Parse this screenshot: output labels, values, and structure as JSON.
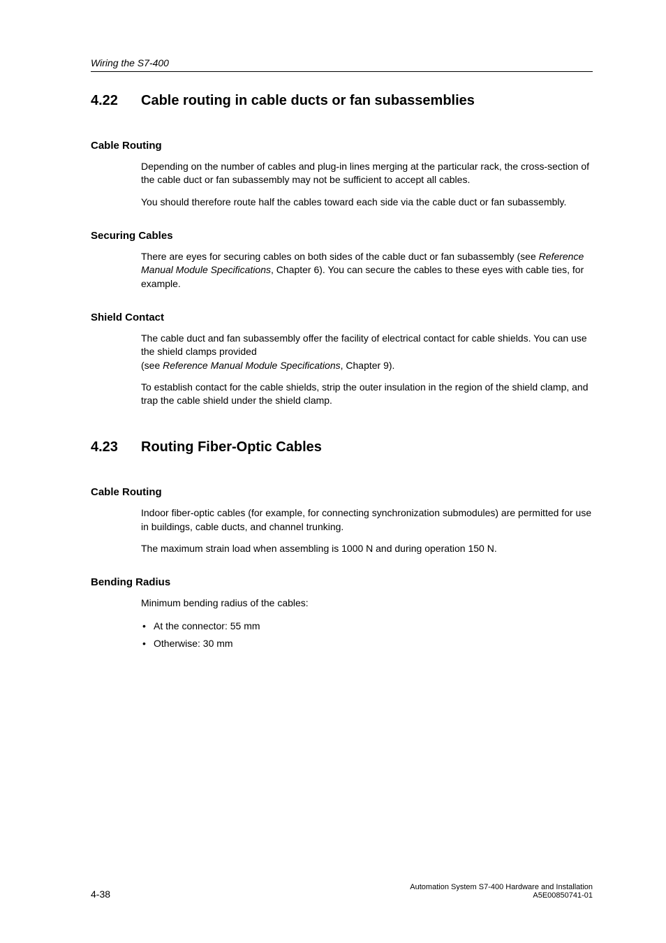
{
  "runningHead": "Wiring the S7-400",
  "section1": {
    "number": "4.22",
    "title": "Cable routing in cable ducts or fan subassemblies",
    "sub1": {
      "heading": "Cable Routing",
      "p1": "Depending on the number of cables and plug-in lines merging at the particular rack, the cross-section of the cable duct or fan subassembly may not be sufficient to accept all cables.",
      "p2": "You should therefore route half the cables toward each side via the cable duct or fan subassembly."
    },
    "sub2": {
      "heading": "Securing Cables",
      "p1a": "There are eyes for securing cables on both sides of the cable duct or fan subassembly (see ",
      "p1ital": "Reference Manual Module Specifications",
      "p1b": ", Chapter 6). You can secure the cables to these eyes with cable ties, for example."
    },
    "sub3": {
      "heading": "Shield Contact",
      "p1a": "The cable duct and fan subassembly offer the facility of electrical contact for cable shields. You can use the shield clamps provided",
      "p1br_a": "(see ",
      "p1br_ital": "Reference Manual Module Specifications",
      "p1br_b": ", Chapter 9).",
      "p2": "To establish contact for the cable shields, strip the outer insulation in the region of the shield clamp, and trap the cable shield under the shield clamp."
    }
  },
  "section2": {
    "number": "4.23",
    "title": "Routing Fiber-Optic Cables",
    "sub1": {
      "heading": "Cable Routing",
      "p1": "Indoor fiber-optic cables (for example, for connecting synchronization submodules) are permitted for use in buildings, cable ducts, and channel trunking.",
      "p2": "The maximum strain load when assembling is 1000 N and during operation 150 N."
    },
    "sub2": {
      "heading": "Bending Radius",
      "p1": "Minimum bending radius of the cables:",
      "li1": "At the connector: 55 mm",
      "li2": "Otherwise: 30 mm"
    }
  },
  "footer": {
    "pageno": "4-38",
    "line1": "Automation System S7-400  Hardware and Installation",
    "line2": "A5E00850741-01"
  }
}
